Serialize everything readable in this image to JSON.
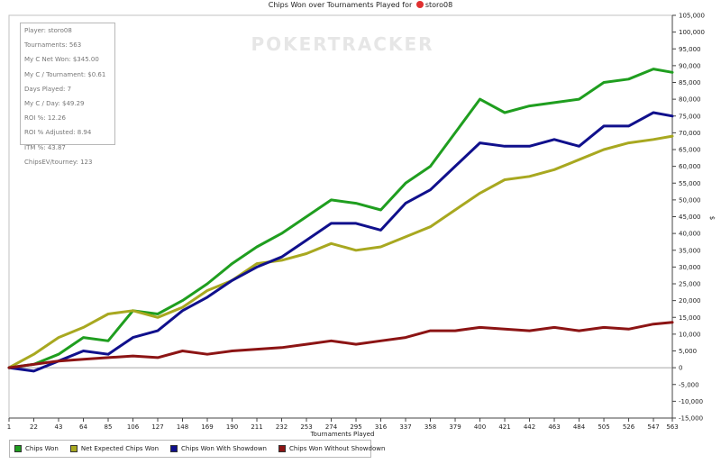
{
  "header": {
    "title": "Chips Won over Tournaments Played for",
    "player": "storo08"
  },
  "watermark": "POKERTRACKER",
  "stats_box": [
    "Player: storo08",
    "Tournaments: 563",
    "My C Net Won: $345.00",
    "My C / Tournament: $0.61",
    "Days Played: 7",
    "My C / Day: $49.29",
    "ROI %: 12.26",
    "ROI % Adjusted: 8.94",
    "ITM %: 43.87",
    "ChipsEV/tourney: 123"
  ],
  "legend": [
    {
      "label": "Chips Won",
      "color": "#1f9e1f"
    },
    {
      "label": "Net Expected Chips Won",
      "color": "#a8a820"
    },
    {
      "label": "Chips Won With Showdown",
      "color": "#10108c"
    },
    {
      "label": "Chips Won Without Showdown",
      "color": "#8c1414"
    }
  ],
  "chart_data": {
    "type": "line",
    "title": "Chips Won over Tournaments Played for storo08",
    "xlabel": "Tournaments Played",
    "ylabel": "$",
    "xlim": [
      1,
      563
    ],
    "ylim": [
      -15000,
      105000
    ],
    "grid": false,
    "legend_position": "bottom-left",
    "x_ticks": [
      1,
      22,
      43,
      64,
      85,
      106,
      127,
      148,
      169,
      190,
      211,
      232,
      253,
      274,
      295,
      316,
      337,
      358,
      379,
      400,
      421,
      442,
      463,
      484,
      505,
      526,
      547,
      563
    ],
    "y_ticks": [
      -15000,
      -10000,
      -5000,
      0,
      5000,
      10000,
      15000,
      20000,
      25000,
      30000,
      35000,
      40000,
      45000,
      50000,
      55000,
      60000,
      65000,
      70000,
      75000,
      80000,
      85000,
      90000,
      95000,
      100000,
      105000
    ],
    "y_tick_labels": [
      "-15,000",
      "-10,000",
      "-5,000",
      "0",
      "5,000",
      "10,000",
      "15,000",
      "20,000",
      "25,000",
      "30,000",
      "35,000",
      "40,000",
      "45,000",
      "50,000",
      "55,000",
      "60,000",
      "65,000",
      "70,000",
      "75,000",
      "80,000",
      "85,000",
      "90,000",
      "95,000",
      "100,000",
      "105,000"
    ],
    "x": [
      1,
      22,
      43,
      64,
      85,
      106,
      127,
      148,
      169,
      190,
      211,
      232,
      253,
      274,
      295,
      316,
      337,
      358,
      379,
      400,
      421,
      442,
      463,
      484,
      505,
      526,
      547,
      563
    ],
    "series": [
      {
        "name": "Chips Won",
        "color": "#1f9e1f",
        "values": [
          0,
          1000,
          4000,
          9000,
          8000,
          17000,
          16000,
          20000,
          25000,
          31000,
          36000,
          40000,
          45000,
          50000,
          49000,
          47000,
          55000,
          60000,
          70000,
          80000,
          76000,
          78000,
          79000,
          80000,
          85000,
          86000,
          89000,
          88000
        ]
      },
      {
        "name": "Net Expected Chips Won",
        "color": "#a8a820",
        "values": [
          0,
          4000,
          9000,
          12000,
          16000,
          17000,
          15000,
          18000,
          23000,
          26000,
          31000,
          32000,
          34000,
          37000,
          35000,
          36000,
          39000,
          42000,
          47000,
          52000,
          56000,
          57000,
          59000,
          62000,
          65000,
          67000,
          68000,
          69000
        ]
      },
      {
        "name": "Chips Won With Showdown",
        "color": "#10108c",
        "values": [
          0,
          -1000,
          2000,
          5000,
          4000,
          9000,
          11000,
          17000,
          21000,
          26000,
          30000,
          33000,
          38000,
          43000,
          43000,
          41000,
          49000,
          53000,
          60000,
          67000,
          66000,
          66000,
          68000,
          66000,
          72000,
          72000,
          76000,
          75000
        ]
      },
      {
        "name": "Chips Won Without Showdown",
        "color": "#8c1414",
        "values": [
          0,
          1000,
          2000,
          2500,
          3000,
          3500,
          3000,
          5000,
          4000,
          5000,
          5500,
          6000,
          7000,
          8000,
          7000,
          8000,
          9000,
          11000,
          11000,
          12000,
          11500,
          11000,
          12000,
          11000,
          12000,
          11500,
          13000,
          13500
        ]
      }
    ]
  }
}
